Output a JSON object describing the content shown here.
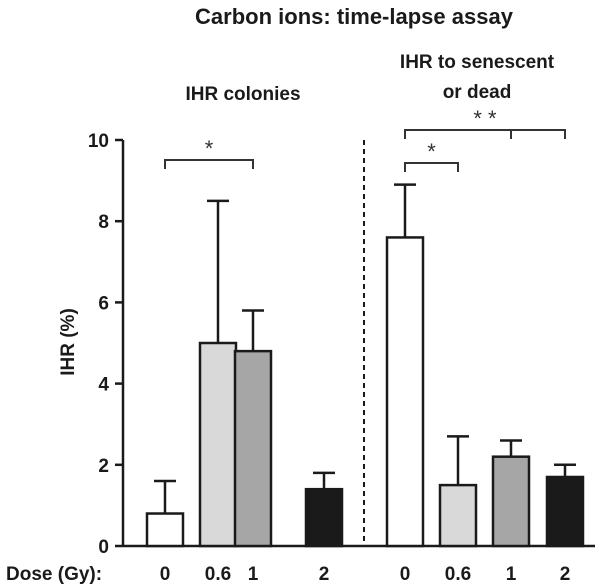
{
  "chart_data": {
    "type": "bar",
    "title": "Carbon ions: time-lapse assay",
    "xlabel": "Dose (Gy):",
    "ylabel": "IHR (%)",
    "ylim": [
      0,
      10
    ],
    "yticks": [
      0,
      2,
      4,
      6,
      8,
      10
    ],
    "grid": false,
    "panels": [
      {
        "label": "IHR colonies",
        "categories": [
          "0",
          "0.6",
          "1",
          "2"
        ],
        "values": [
          0.8,
          5.0,
          4.8,
          1.4
        ],
        "errors": [
          0.8,
          3.5,
          1.0,
          0.4
        ],
        "colors": [
          "#ffffff",
          "#d9d9d9",
          "#a6a6a6",
          "#1a1a1a"
        ],
        "significance": [
          {
            "from": 0,
            "to": 2,
            "label": "*"
          }
        ]
      },
      {
        "label_lines": [
          "IHR to senescent",
          "or dead"
        ],
        "categories": [
          "0",
          "0.6",
          "1",
          "2"
        ],
        "values": [
          7.6,
          1.5,
          2.2,
          1.7
        ],
        "errors": [
          1.3,
          1.2,
          0.4,
          0.3
        ],
        "colors": [
          "#ffffff",
          "#d9d9d9",
          "#a6a6a6",
          "#1a1a1a"
        ],
        "significance": [
          {
            "from": 0,
            "to": 1,
            "label": "*"
          },
          {
            "from": 0,
            "to": 3,
            "label": "* *",
            "branch": 2
          }
        ]
      }
    ]
  }
}
